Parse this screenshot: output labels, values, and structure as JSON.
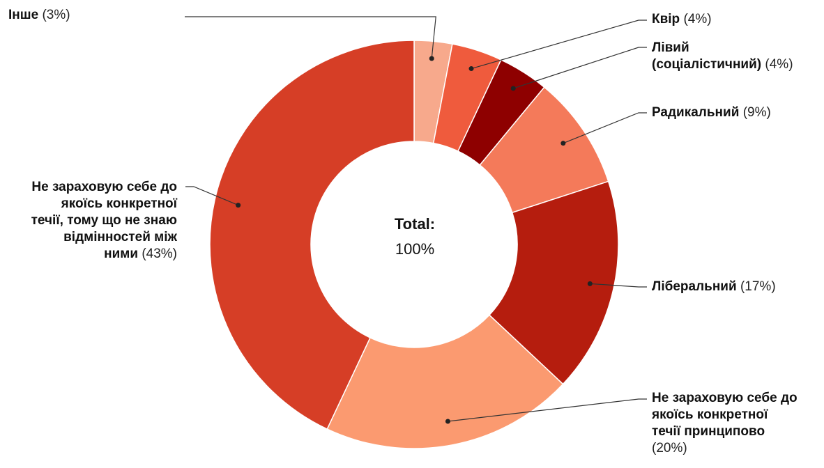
{
  "chart_data": {
    "type": "pie",
    "subtype": "donut",
    "center_label": {
      "title": "Total:",
      "value": "100%"
    },
    "slices": [
      {
        "label": "Інше",
        "pct_label": "(3%)",
        "value": 3,
        "color": "#f7a98c"
      },
      {
        "label": "Квір",
        "pct_label": "(4%)",
        "value": 4,
        "color": "#ef5b3d"
      },
      {
        "label": "Лівий (соціалістичний)",
        "pct_label": "(4%)",
        "value": 4,
        "color": "#8e0000"
      },
      {
        "label": "Радикальний",
        "pct_label": "(9%)",
        "value": 9,
        "color": "#f47a5a"
      },
      {
        "label": "Ліберальний",
        "pct_label": "(17%)",
        "value": 17,
        "color": "#b51d0e"
      },
      {
        "label": "Не зараховую себе до якоїсь конкретної течії принципово",
        "pct_label": "(20%)",
        "value": 20,
        "color": "#fb9a70"
      },
      {
        "label": "Не зараховую себе до якоїсь конкретної течії, тому що не знаю відмінностей між ними",
        "pct_label": "(43%)",
        "value": 43,
        "color": "#d63e26"
      }
    ]
  },
  "labels": {
    "l0": {
      "name": "Інше",
      "pct": "(3%)"
    },
    "l1": {
      "name": "Квір",
      "pct": "(4%)"
    },
    "l2": {
      "line1": "Лівий",
      "line2": "(соціалістичний)",
      "pct": "(4%)"
    },
    "l3": {
      "name": "Радикальний",
      "pct": "(9%)"
    },
    "l4": {
      "name": "Ліберальний",
      "pct": "(17%)"
    },
    "l5": {
      "line1": "Не зараховую себе до",
      "line2": "якоїсь конкретної",
      "line3": "течії принципово",
      "pct": "(20%)"
    },
    "l6": {
      "line1": "Не зараховую себе до",
      "line2": "якоїсь конкретної",
      "line3": "течії, тому що не знаю",
      "line4": "відмінностей між",
      "line5": "ними",
      "pct": "(43%)"
    }
  }
}
